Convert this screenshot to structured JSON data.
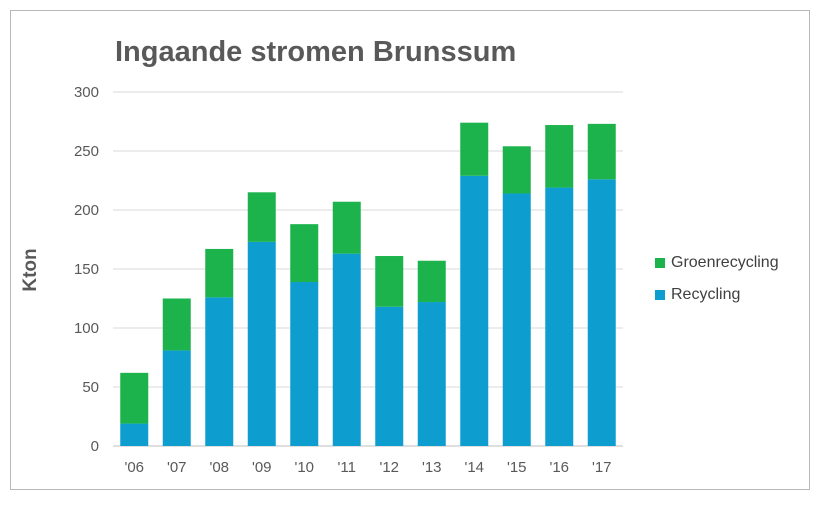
{
  "chart_data": {
    "type": "bar",
    "stacked": true,
    "title": "Ingaande stromen Brunssum",
    "xlabel": "",
    "ylabel": "Kton",
    "ylim": [
      0,
      300
    ],
    "yticks": [
      0,
      50,
      100,
      150,
      200,
      250,
      300
    ],
    "grid": true,
    "legend_position": "right",
    "categories": [
      "'06",
      "'07",
      "'08",
      "'09",
      "'10",
      "'11",
      "'12",
      "'13",
      "'14",
      "'15",
      "'16",
      "'17"
    ],
    "series": [
      {
        "name": "Recycling",
        "color": "#0d9dcf",
        "values": [
          19,
          81,
          126,
          173,
          139,
          163,
          118,
          122,
          229,
          214,
          219,
          226
        ]
      },
      {
        "name": "Groenrecycling",
        "color": "#1db34c",
        "values": [
          43,
          44,
          41,
          42,
          49,
          44,
          43,
          35,
          45,
          40,
          53,
          47
        ]
      }
    ]
  }
}
